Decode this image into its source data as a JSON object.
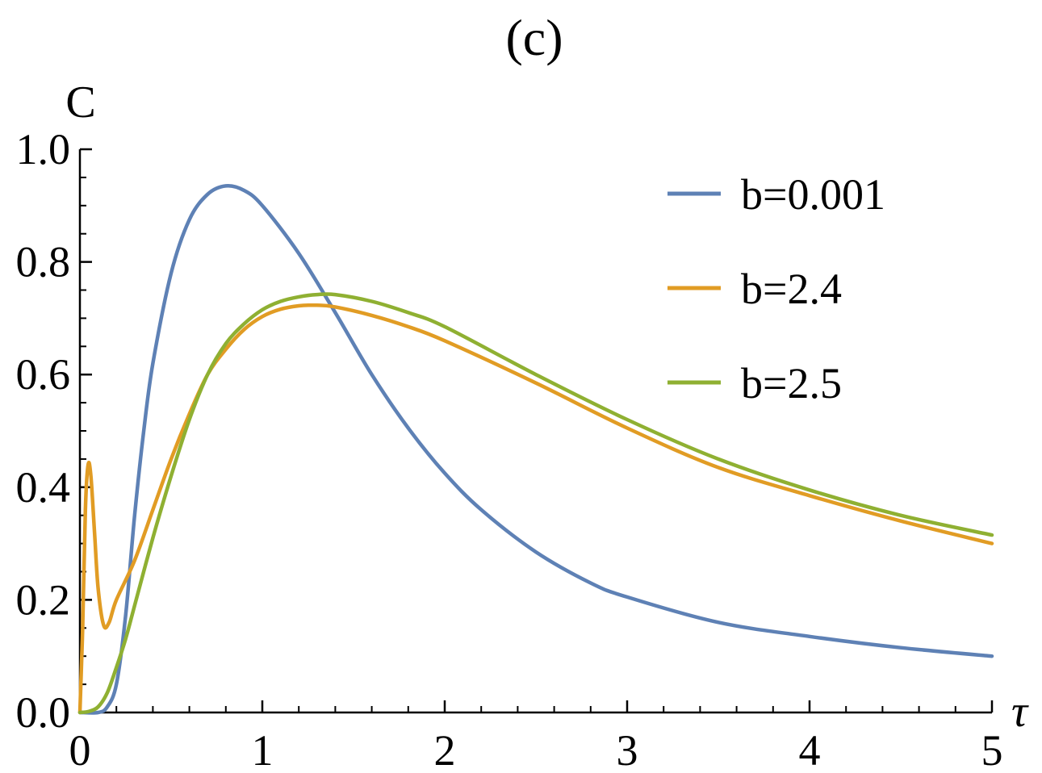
{
  "chart_data": {
    "type": "line",
    "title": "(c)",
    "xlabel": "τ",
    "ylabel": "C",
    "xlim": [
      0,
      5
    ],
    "ylim": [
      0,
      1.0
    ],
    "xticks": [
      "0",
      "1",
      "2",
      "3",
      "4",
      "5"
    ],
    "yticks": [
      "0.0",
      "0.2",
      "0.4",
      "0.6",
      "0.8",
      "1.0"
    ],
    "grid": false,
    "legend_position": "top-right",
    "series": [
      {
        "name": "b=0.001",
        "color": "#5E81B5",
        "points": [
          [
            0,
            0
          ],
          [
            0.1,
            0
          ],
          [
            0.15,
            0.01
          ],
          [
            0.2,
            0.05
          ],
          [
            0.25,
            0.17
          ],
          [
            0.3,
            0.35
          ],
          [
            0.35,
            0.5
          ],
          [
            0.4,
            0.62
          ],
          [
            0.5,
            0.78
          ],
          [
            0.6,
            0.875
          ],
          [
            0.7,
            0.92
          ],
          [
            0.8,
            0.935
          ],
          [
            0.9,
            0.927
          ],
          [
            1.0,
            0.9
          ],
          [
            1.2,
            0.815
          ],
          [
            1.4,
            0.71
          ],
          [
            1.6,
            0.6
          ],
          [
            1.8,
            0.505
          ],
          [
            2.0,
            0.425
          ],
          [
            2.2,
            0.36
          ],
          [
            2.5,
            0.285
          ],
          [
            2.8,
            0.23
          ],
          [
            3.0,
            0.205
          ],
          [
            3.5,
            0.16
          ],
          [
            4.0,
            0.135
          ],
          [
            4.5,
            0.115
          ],
          [
            5.0,
            0.1
          ]
        ]
      },
      {
        "name": "b=2.4",
        "color": "#E19C24",
        "points": [
          [
            0,
            0
          ],
          [
            0.015,
            0.15
          ],
          [
            0.03,
            0.36
          ],
          [
            0.045,
            0.44
          ],
          [
            0.06,
            0.42
          ],
          [
            0.08,
            0.32
          ],
          [
            0.1,
            0.22
          ],
          [
            0.13,
            0.155
          ],
          [
            0.16,
            0.16
          ],
          [
            0.2,
            0.2
          ],
          [
            0.3,
            0.27
          ],
          [
            0.4,
            0.36
          ],
          [
            0.5,
            0.45
          ],
          [
            0.6,
            0.53
          ],
          [
            0.7,
            0.6
          ],
          [
            0.8,
            0.645
          ],
          [
            0.9,
            0.68
          ],
          [
            1.0,
            0.703
          ],
          [
            1.1,
            0.716
          ],
          [
            1.2,
            0.722
          ],
          [
            1.3,
            0.723
          ],
          [
            1.4,
            0.72
          ],
          [
            1.6,
            0.705
          ],
          [
            1.8,
            0.685
          ],
          [
            2.0,
            0.66
          ],
          [
            2.5,
            0.585
          ],
          [
            3.0,
            0.505
          ],
          [
            3.5,
            0.435
          ],
          [
            4.0,
            0.385
          ],
          [
            4.5,
            0.34
          ],
          [
            5.0,
            0.3
          ]
        ]
      },
      {
        "name": "b=2.5",
        "color": "#8FB032",
        "points": [
          [
            0,
            0
          ],
          [
            0.05,
            0.002
          ],
          [
            0.1,
            0.01
          ],
          [
            0.15,
            0.035
          ],
          [
            0.2,
            0.08
          ],
          [
            0.25,
            0.13
          ],
          [
            0.3,
            0.19
          ],
          [
            0.4,
            0.31
          ],
          [
            0.5,
            0.42
          ],
          [
            0.6,
            0.52
          ],
          [
            0.7,
            0.6
          ],
          [
            0.8,
            0.655
          ],
          [
            0.9,
            0.69
          ],
          [
            1.0,
            0.715
          ],
          [
            1.1,
            0.73
          ],
          [
            1.2,
            0.738
          ],
          [
            1.3,
            0.742
          ],
          [
            1.4,
            0.742
          ],
          [
            1.6,
            0.73
          ],
          [
            1.8,
            0.71
          ],
          [
            2.0,
            0.685
          ],
          [
            2.5,
            0.6
          ],
          [
            3.0,
            0.52
          ],
          [
            3.5,
            0.45
          ],
          [
            4.0,
            0.395
          ],
          [
            4.5,
            0.35
          ],
          [
            5.0,
            0.315
          ]
        ]
      }
    ]
  }
}
